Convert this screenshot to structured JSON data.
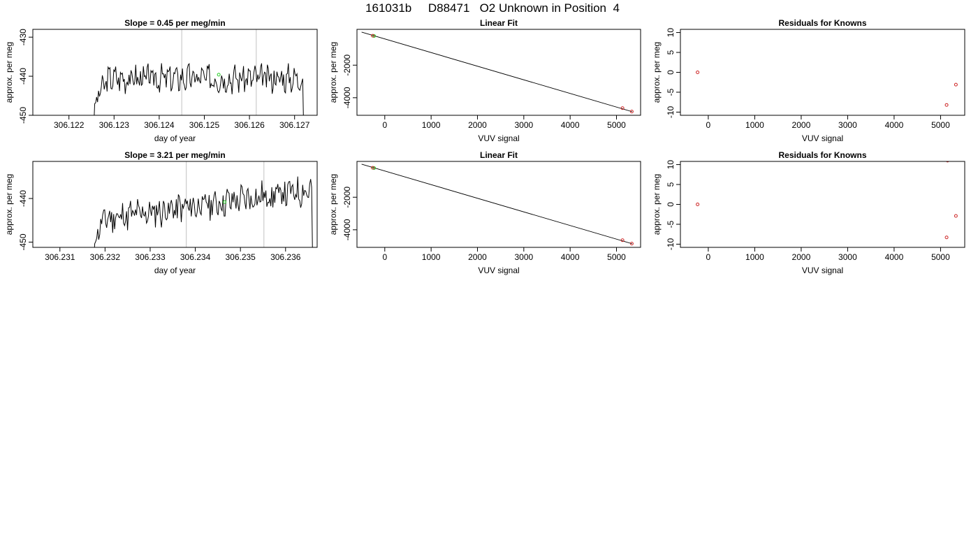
{
  "page_title": "161031b     D88471   O2 Unknown in Position  4",
  "colors": {
    "line": "#000000",
    "frame": "#000000",
    "marker_lines": "#cccccc",
    "unknown_point": "#22cc22",
    "known_point": "#cc2222"
  },
  "chart_data": [
    {
      "id": "p1",
      "type": "line",
      "title": "Slope =  0.45  per meg/min",
      "xlabel": "day of year",
      "ylabel": "approx. per meg",
      "xlim": [
        306.1212,
        306.1275
      ],
      "ylim": [
        -450,
        -428
      ],
      "xticks": [
        306.122,
        306.123,
        306.124,
        306.125,
        306.126,
        306.127
      ],
      "xtick_labels": [
        "306.122",
        "306.123",
        "306.124",
        "306.125",
        "306.126",
        "306.127"
      ],
      "yticks": [
        -450,
        -440,
        -430
      ],
      "ytick_labels": [
        "-450",
        "-440",
        "-430"
      ],
      "vlines": [
        306.1245,
        306.12615
      ],
      "trace": {
        "x_start": 306.12255,
        "x_end": 306.1272,
        "level": -440.5,
        "rise_end": 306.1229,
        "seed": 3
      },
      "points": [
        {
          "x": 306.12532,
          "y": -439.6,
          "kind": "unknown"
        }
      ],
      "grid": false
    },
    {
      "id": "p2",
      "type": "scatter",
      "title": "Linear Fit",
      "xlabel": "VUV signal",
      "ylabel": "approx. per meg",
      "xlim": [
        -600,
        5520
      ],
      "ylim": [
        -5080,
        200
      ],
      "xticks": [
        0,
        1000,
        2000,
        3000,
        4000,
        5000
      ],
      "xtick_labels": [
        "0",
        "1000",
        "2000",
        "3000",
        "4000",
        "5000"
      ],
      "yticks": [
        -4000,
        -2000
      ],
      "ytick_labels": [
        "-4000",
        "-2000"
      ],
      "fit_line": {
        "x": [
          -500,
          5340
        ],
        "y": [
          30,
          -4860
        ]
      },
      "points": [
        {
          "x": -230,
          "y": -210,
          "kind": "unknown"
        },
        {
          "x": -260,
          "y": -190,
          "kind": "known"
        },
        {
          "x": 5130,
          "y": -4640,
          "kind": "known"
        },
        {
          "x": 5330,
          "y": -4850,
          "kind": "known"
        }
      ],
      "grid": false
    },
    {
      "id": "p3",
      "type": "scatter",
      "title": "Residuals for Knowns",
      "xlabel": "VUV signal",
      "ylabel": "approx. per meg",
      "xlim": [
        -600,
        5520
      ],
      "ylim": [
        -10.8,
        10.8
      ],
      "xticks": [
        0,
        1000,
        2000,
        3000,
        4000,
        5000
      ],
      "xtick_labels": [
        "0",
        "1000",
        "2000",
        "3000",
        "4000",
        "5000"
      ],
      "yticks": [
        -10,
        -5,
        0,
        5,
        10
      ],
      "ytick_labels": [
        "-10",
        "-5",
        "0",
        "5",
        "10"
      ],
      "points": [
        {
          "x": -230,
          "y": 0,
          "kind": "known"
        },
        {
          "x": 5130,
          "y": -8.2,
          "kind": "known"
        },
        {
          "x": 5330,
          "y": -3.1,
          "kind": "known"
        }
      ],
      "grid": false
    },
    {
      "id": "p4",
      "type": "line",
      "title": "Slope =  3.21  per meg/min",
      "xlabel": "day of year",
      "ylabel": "approx. per meg",
      "xlim": [
        306.2304,
        306.2367
      ],
      "ylim": [
        -451.2,
        -431.5
      ],
      "xticks": [
        306.231,
        306.232,
        306.233,
        306.234,
        306.235,
        306.236
      ],
      "xtick_labels": [
        "306.231",
        "306.232",
        "306.233",
        "306.234",
        "306.235",
        "306.236"
      ],
      "yticks": [
        -450,
        -440
      ],
      "ytick_labels": [
        "-450",
        "-440"
      ],
      "vlines": [
        306.2338,
        306.23552
      ],
      "trace": {
        "x_start": 306.23175,
        "x_end": 306.2366,
        "level": -445,
        "level_end": -438,
        "rise_end": 306.232,
        "seed": 11
      },
      "points": [
        {
          "x": 306.23465,
          "y": -440.8,
          "kind": "unknown"
        }
      ],
      "grid": false
    },
    {
      "id": "p5",
      "type": "scatter",
      "title": "Linear Fit",
      "xlabel": "VUV signal",
      "ylabel": "approx. per meg",
      "xlim": [
        -600,
        5520
      ],
      "ylim": [
        -5080,
        200
      ],
      "xticks": [
        0,
        1000,
        2000,
        3000,
        4000,
        5000
      ],
      "xtick_labels": [
        "0",
        "1000",
        "2000",
        "3000",
        "4000",
        "5000"
      ],
      "yticks": [
        -4000,
        -2000
      ],
      "ytick_labels": [
        "-4000",
        "-2000"
      ],
      "fit_line": {
        "x": [
          -500,
          5340
        ],
        "y": [
          30,
          -4860
        ]
      },
      "points": [
        {
          "x": -230,
          "y": -210,
          "kind": "unknown"
        },
        {
          "x": -260,
          "y": -190,
          "kind": "known"
        },
        {
          "x": 5130,
          "y": -4640,
          "kind": "known"
        },
        {
          "x": 5330,
          "y": -4850,
          "kind": "known"
        }
      ],
      "grid": false
    },
    {
      "id": "p6",
      "type": "scatter",
      "title": "Residuals for Knowns",
      "xlabel": "VUV signal",
      "ylabel": "approx. per meg",
      "xlim": [
        -600,
        5520
      ],
      "ylim": [
        -10.8,
        10.8
      ],
      "xticks": [
        0,
        1000,
        2000,
        3000,
        4000,
        5000
      ],
      "xtick_labels": [
        "0",
        "1000",
        "2000",
        "3000",
        "4000",
        "5000"
      ],
      "yticks": [
        -10,
        -5,
        0,
        5,
        10
      ],
      "ytick_labels": [
        "-10",
        "-5",
        "0",
        "5",
        "10"
      ],
      "points": [
        {
          "x": -230,
          "y": 0,
          "kind": "known"
        },
        {
          "x": 5150,
          "y": 11,
          "kind": "known"
        },
        {
          "x": 5130,
          "y": -8.3,
          "kind": "known"
        },
        {
          "x": 5330,
          "y": -2.9,
          "kind": "known"
        }
      ],
      "grid": false
    }
  ]
}
